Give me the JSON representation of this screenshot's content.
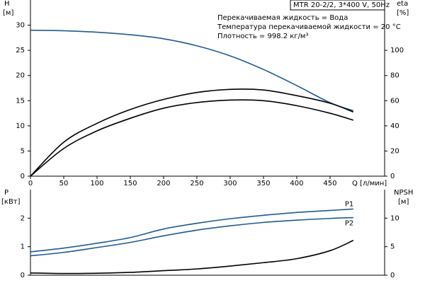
{
  "chart_data": [
    {
      "type": "line",
      "header": "MTR 20-2/2, 3*400 V, 50Hz",
      "annotations": [
        "Перекачиваемая жидкость = Вода",
        "Температура перекачиваемой жидкости = 20 °C",
        "Плотность = 998.2 кг/м³"
      ],
      "y_label": [
        "H",
        "[м]"
      ],
      "y2_label": [
        "eta",
        "[%]"
      ],
      "x_label": "Q [л/мин]",
      "x": [
        0,
        50,
        100,
        150,
        200,
        250,
        300,
        350,
        400,
        450,
        485
      ],
      "xlim": [
        0,
        532
      ],
      "xticks": [
        0,
        50,
        100,
        150,
        200,
        250,
        300,
        350,
        400,
        450
      ],
      "ylim": [
        0,
        35
      ],
      "yticks": [
        0,
        5,
        10,
        15,
        20,
        25,
        30
      ],
      "y2lim": [
        0,
        140
      ],
      "y2ticks": [
        0,
        20,
        40,
        60,
        80,
        100
      ],
      "series": [
        {
          "color": "#1f5a96",
          "values": [
            29,
            28.9,
            28.6,
            28.1,
            27.3,
            25.9,
            23.9,
            21.2,
            18.0,
            14.6,
            13.0
          ]
        },
        {
          "color": "#000000",
          "axis": "y2",
          "values": [
            0,
            27,
            42,
            53,
            61,
            66.5,
            69,
            68.5,
            64,
            58,
            51
          ]
        },
        {
          "color": "#000000",
          "axis": "y2",
          "values": [
            0,
            22,
            36,
            46,
            54,
            58.5,
            60.5,
            60,
            56,
            50,
            44.5
          ]
        }
      ]
    },
    {
      "type": "line",
      "y_label": [
        "P",
        "[кВт]"
      ],
      "y2_label": [
        "NPSH",
        "[м]"
      ],
      "x": [
        0,
        50,
        100,
        150,
        200,
        250,
        300,
        350,
        400,
        450,
        485
      ],
      "xlim": [
        0,
        532
      ],
      "ylim": [
        0,
        3
      ],
      "yticks": [
        0,
        1,
        2
      ],
      "y2lim": [
        0,
        15
      ],
      "y2ticks": [
        0,
        5,
        10
      ],
      "series": [
        {
          "name": "P1",
          "color": "#1f5a96",
          "values": [
            0.82,
            0.95,
            1.12,
            1.32,
            1.62,
            1.82,
            1.98,
            2.1,
            2.2,
            2.27,
            2.32
          ]
        },
        {
          "name": "P2",
          "color": "#1f5a96",
          "values": [
            0.68,
            0.8,
            0.97,
            1.15,
            1.38,
            1.58,
            1.73,
            1.85,
            1.93,
            1.99,
            2.02
          ]
        },
        {
          "color": "#000000",
          "axis": "y2",
          "values": [
            0.4,
            0.3,
            0.35,
            0.5,
            0.8,
            1.1,
            1.6,
            2.2,
            2.9,
            4.3,
            6.1
          ]
        }
      ]
    }
  ]
}
